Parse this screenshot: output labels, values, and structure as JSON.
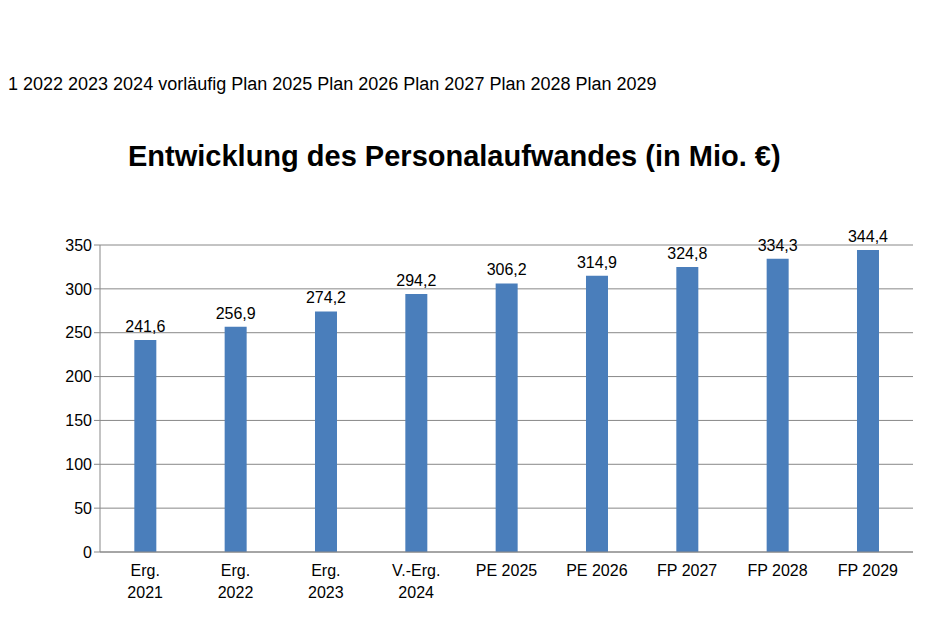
{
  "chart_data": {
    "type": "bar",
    "title": "Entwicklung des Personalaufwandes (in Mio. €)",
    "subtitle": "1 2022 2023 2024 vorläufig Plan 2025 Plan 2026 Plan 2027 Plan 2028 Plan 2029",
    "categories": [
      "Erg.\n2021",
      "Erg.\n2022",
      "Erg.\n2023",
      "V.-Erg.\n2024",
      "PE 2025",
      "PE 2026",
      "FP 2027",
      "FP 2028",
      "FP 2029"
    ],
    "values": [
      241.6,
      256.9,
      274.2,
      294.2,
      306.2,
      314.9,
      324.8,
      334.3,
      344.4
    ],
    "value_labels": [
      "241,6",
      "256,9",
      "274,2",
      "294,2",
      "306,2",
      "314,9",
      "324,8",
      "334,3",
      "344,4"
    ],
    "color": "#4a7ebb",
    "ylim": [
      0,
      350
    ],
    "yticks": [
      0,
      50,
      100,
      150,
      200,
      250,
      300,
      350
    ],
    "grid": true,
    "data_labels": true
  }
}
